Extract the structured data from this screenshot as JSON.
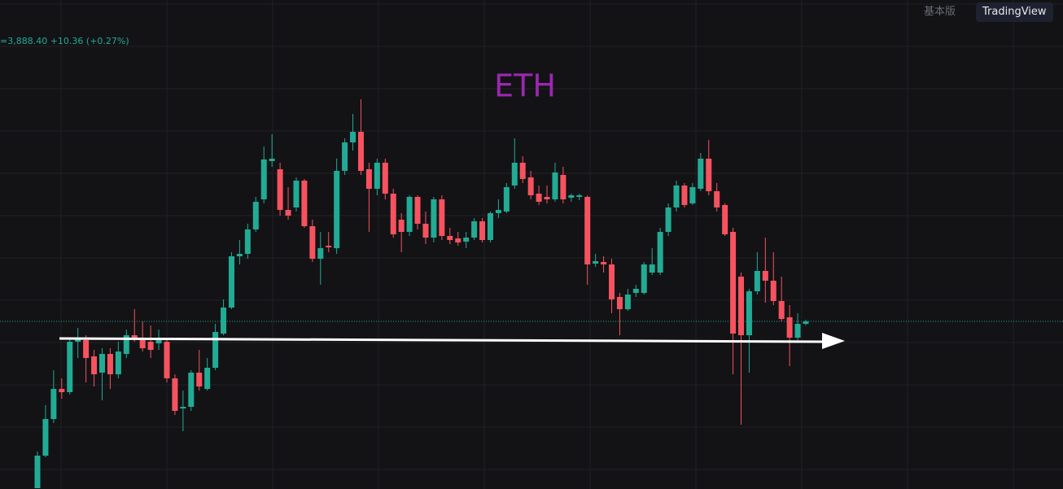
{
  "toolbar": {
    "buttons": [
      "基本版",
      "TradingView"
    ]
  },
  "legend": {
    "price": "=3,888.40",
    "change": "+10.36",
    "change_pct": "(+0.27%)"
  },
  "chart_data": {
    "type": "candlestick",
    "title": "ETH",
    "title_color": "#9c27b0",
    "up_color": "#22ab94",
    "down_color": "#f7525f",
    "ylim": [
      3785.5,
      4086
    ],
    "open": [
      3786,
      3806,
      3828.5,
      3847,
      3845,
      3876,
      3877,
      3867,
      3857,
      3868.5,
      3856,
      3868.5,
      3880,
      3878.5,
      3876,
      3875,
      3876,
      3853.5,
      3835,
      3836,
      3857,
      3847,
      3860,
      3881,
      3897,
      3928.5,
      3930,
      3945,
      3963.5,
      3987,
      3982,
      3957,
      3958.5,
      3975,
      3947,
      3927,
      3935,
      3933.5,
      3981,
      3998.5,
      4005,
      3982,
      3970,
      3986,
      3967,
      3951,
      3943.5,
      3965,
      3948.5,
      3940,
      3963.5,
      3941,
      3939.5,
      3937.5,
      3940,
      3950,
      3938.5,
      3955,
      3956,
      3972,
      3986,
      3977,
      3967,
      3965,
      3963.5,
      3978.5,
      3964.5,
      3965,
      3965,
      3924,
      3925,
      3923.5,
      3903.5,
      3896,
      3906,
      3906,
      3918.5,
      3918.5,
      3943.5,
      3958.5,
      3972,
      3961,
      3970,
      3988.5,
      3968.5,
      3960,
      3943.5,
      3916,
      3880,
      3907,
      3919.5,
      3913.5,
      3901,
      3891,
      3878.5,
      3887
    ],
    "high": [
      3808.5,
      3837,
      3858.5,
      3853.5,
      3878.5,
      3884.5,
      3880,
      3871,
      3872,
      3872,
      3876,
      3883.5,
      3896,
      3888.5,
      3886,
      3883.5,
      3878.5,
      3856,
      3846,
      3858.5,
      3871,
      3866,
      3887,
      3902,
      3931,
      3938.5,
      3948.5,
      3965,
      3996,
      4003.5,
      3986,
      3971,
      3977,
      3976,
      3951,
      3943.5,
      3943.5,
      3988.5,
      4001,
      4016,
      4025,
      3986,
      3988.5,
      3988.5,
      3970,
      3955,
      3966,
      3966,
      3956,
      3965,
      3966,
      3946,
      3943.5,
      3943.5,
      3952,
      3952,
      3956,
      3963.5,
      3973.5,
      4001,
      3990,
      3981,
      3972,
      3972,
      3986,
      3983.5,
      3967,
      3967,
      3966,
      3930,
      3928.5,
      3927,
      3906,
      3908.5,
      3911,
      3925,
      3933.5,
      3946,
      3961,
      3975,
      3973.5,
      3973.5,
      3992,
      4000,
      3973.5,
      3961,
      3946,
      3918.5,
      3908.5,
      3931,
      3940,
      3931,
      3916,
      3898.5,
      3893.5,
      3889.5
    ],
    "low": [
      3786,
      3805,
      3826,
      3841,
      3843.5,
      3866,
      3851,
      3848.5,
      3840,
      3847,
      3853.5,
      3866,
      3876,
      3870,
      3866,
      3871,
      3851,
      3831,
      3821,
      3833.5,
      3846,
      3846,
      3858.5,
      3880,
      3896,
      3923.5,
      3927,
      3943.5,
      3961,
      3983.5,
      3953.5,
      3951,
      3956,
      3946,
      3925,
      3911,
      3931,
      3930,
      3978.5,
      3993.5,
      3978.5,
      3943.5,
      3966,
      3963.5,
      3940,
      3931,
      3941,
      3945,
      3936,
      3937,
      3938.5,
      3936,
      3935,
      3933.5,
      3938.5,
      3937,
      3937,
      3952,
      3955,
      3970,
      3973.5,
      3963.5,
      3960,
      3961,
      3962,
      3961,
      3962,
      3963,
      3911,
      3922,
      3918.5,
      3893.5,
      3880,
      3895,
      3903.5,
      3905,
      3917,
      3917,
      3941,
      3956,
      3958.5,
      3960,
      3968.5,
      3966,
      3956,
      3941,
      3856,
      3825,
      3857,
      3905,
      3900,
      3898.5,
      3888.5,
      3861,
      3877,
      3886
    ],
    "close": [
      3806,
      3828.5,
      3847,
      3845,
      3876,
      3878.5,
      3866,
      3856,
      3868.5,
      3856,
      3870,
      3880,
      3878.5,
      3872,
      3871,
      3877,
      3853.5,
      3833.5,
      3836,
      3857,
      3848.5,
      3860,
      3882,
      3897,
      3928.5,
      3930,
      3945,
      3962,
      3988,
      3988.5,
      3957,
      3953.5,
      3975,
      3947,
      3927,
      3933.5,
      3934,
      3981,
      3998.5,
      4005,
      3981,
      3970,
      3986,
      3967,
      3942,
      3943.5,
      3965,
      3948.5,
      3940,
      3963.5,
      3941,
      3938.5,
      3937,
      3940,
      3950,
      3938.5,
      3955,
      3957,
      3971,
      3986,
      3976,
      3966,
      3962,
      3963.5,
      3980,
      3963.5,
      3966,
      3966,
      3923.5,
      3925.5,
      3923.5,
      3902,
      3896,
      3905,
      3908.5,
      3923.5,
      3923.5,
      3943.5,
      3958.5,
      3972,
      3960,
      3971,
      3988.5,
      3968.5,
      3958.5,
      3942,
      3881,
      3880,
      3907,
      3919.5,
      3913.5,
      3901,
      3890,
      3878.5,
      3887,
      3888.5
    ]
  }
}
